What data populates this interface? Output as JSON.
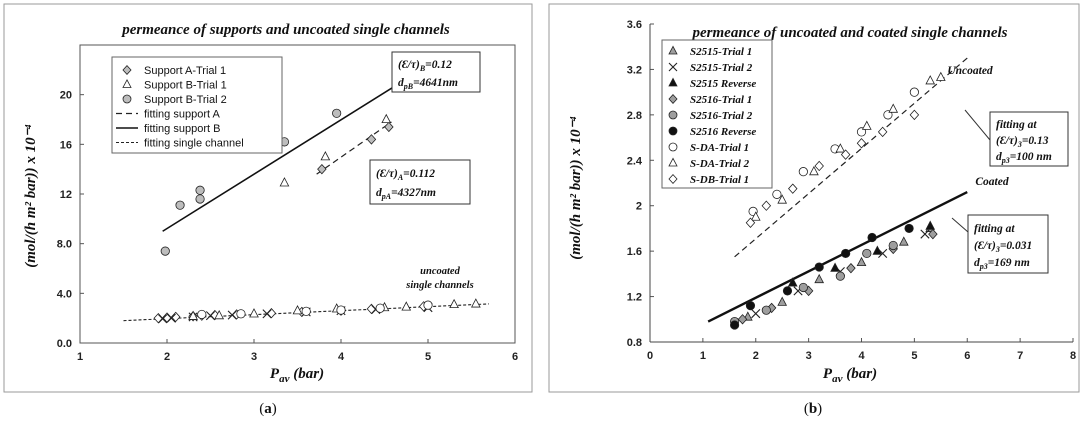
{
  "chart_data": [
    {
      "type": "scatter",
      "title": "permeance of supports and uncoated single channels",
      "xlabel": "P_av (bar)",
      "xlabel_main": "P",
      "xlabel_sub": "av",
      "xlabel_unit": " (bar)",
      "ylabel": "(mol/(h m² bar)) x 10⁻⁴",
      "xlim": [
        1,
        6
      ],
      "ylim": [
        0,
        24
      ],
      "xticks": [
        "1",
        "2",
        "3",
        "4",
        "5",
        "6"
      ],
      "xtick_values": [
        1,
        2,
        3,
        4,
        5,
        6
      ],
      "yticks": [
        "0.0",
        "4.0",
        "8.0",
        "12",
        "16",
        "20"
      ],
      "ytick_values": [
        0,
        4,
        8,
        12,
        16,
        20
      ],
      "grid": false,
      "legend_position": "top-left",
      "caption": "(a)",
      "series": [
        {
          "name": "Support A-Trial 1",
          "marker": "diamond",
          "fill": "#bdbdbd",
          "x": [
            3.78,
            4.35,
            4.55
          ],
          "y": [
            14.0,
            16.4,
            17.4
          ]
        },
        {
          "name": "Support B-Trial 1",
          "marker": "triangle",
          "fill": "#ffffff",
          "x": [
            3.35,
            3.82,
            4.52
          ],
          "y": [
            12.9,
            15.0,
            18.0
          ]
        },
        {
          "name": "Support B-Trial 2",
          "marker": "circle",
          "fill": "#bdbdbd",
          "x": [
            1.98,
            2.15,
            2.38,
            2.38,
            3.35,
            3.95
          ],
          "y": [
            7.4,
            11.1,
            12.3,
            11.6,
            16.2,
            18.5
          ]
        },
        {
          "name": "uncoated single channels (diamond)",
          "marker": "diamond",
          "fill": "#ffffff",
          "x": [
            1.9,
            2.0,
            2.1,
            2.3,
            2.4,
            2.55,
            2.8,
            3.2,
            3.55,
            4.0,
            4.35,
            4.95
          ],
          "y": [
            2.0,
            2.05,
            2.1,
            2.15,
            2.2,
            2.25,
            2.3,
            2.4,
            2.5,
            2.6,
            2.75,
            2.95
          ]
        },
        {
          "name": "uncoated single channels (cross)",
          "marker": "cross",
          "fill": "#ffffff",
          "x": [
            1.95,
            2.05,
            2.3,
            2.5,
            2.75,
            3.15,
            3.6,
            4.0,
            4.4,
            5.0
          ],
          "y": [
            1.95,
            2.0,
            2.1,
            2.2,
            2.25,
            2.35,
            2.5,
            2.6,
            2.7,
            2.85
          ]
        },
        {
          "name": "uncoated single channels (triangle)",
          "marker": "triangle",
          "fill": "#ffffff",
          "x": [
            2.3,
            2.6,
            3.0,
            3.5,
            3.95,
            4.5,
            4.75,
            5.3,
            5.55
          ],
          "y": [
            2.15,
            2.2,
            2.35,
            2.6,
            2.75,
            2.85,
            2.9,
            3.1,
            3.15
          ]
        },
        {
          "name": "uncoated single channels (circle)",
          "marker": "circle",
          "fill": "#ffffff",
          "x": [
            2.4,
            2.85,
            3.6,
            4.0,
            4.45,
            5.0
          ],
          "y": [
            2.3,
            2.35,
            2.55,
            2.65,
            2.8,
            3.05
          ]
        }
      ],
      "fits": [
        {
          "name": "fitting support A",
          "style": "dashed",
          "x": [
            3.72,
            4.58
          ],
          "y": [
            13.6,
            17.8
          ]
        },
        {
          "name": "fitting support B",
          "style": "solid",
          "x": [
            1.95,
            4.6
          ],
          "y": [
            9.0,
            20.6
          ]
        },
        {
          "name": "fitting single channel",
          "style": "dotted",
          "x": [
            1.5,
            5.7
          ],
          "y": [
            1.8,
            3.15
          ]
        }
      ],
      "annotations": {
        "support_b": {
          "line1": "(Ɛ/τ)",
          "line1_sub": "B",
          "line1_val": "=0.12",
          "line2": "d",
          "line2_sub": "pB",
          "line2_val": "=4641nm"
        },
        "support_a": {
          "line1": "(Ɛ/τ)",
          "line1_sub": "A",
          "line1_val": "=0.112",
          "line2": "d",
          "line2_sub": "pA",
          "line2_val": "=4327nm"
        },
        "uncoated_label_1": "uncoated",
        "uncoated_label_2": "single channels"
      }
    },
    {
      "type": "scatter",
      "title": "permeance of uncoated and coated single channels",
      "xlabel": "P_av (bar)",
      "xlabel_main": "P",
      "xlabel_sub": "av",
      "xlabel_unit": " (bar)",
      "ylabel": "(mol/(h m² bar)) x 10⁻⁴",
      "xlim": [
        0,
        8
      ],
      "ylim": [
        0.8,
        3.6
      ],
      "xticks": [
        "0",
        "1",
        "2",
        "3",
        "4",
        "5",
        "6",
        "7",
        "8"
      ],
      "xtick_values": [
        0,
        1,
        2,
        3,
        4,
        5,
        6,
        7,
        8
      ],
      "yticks": [
        "0.8",
        "1.2",
        "1.6",
        "2",
        "2.4",
        "2.8",
        "3.2",
        "3.6"
      ],
      "ytick_values": [
        0.8,
        1.2,
        1.6,
        2.0,
        2.4,
        2.8,
        3.2,
        3.6
      ],
      "grid": false,
      "legend_position": "top-left",
      "caption": "(b)",
      "series": [
        {
          "name": "S2515-Trial 1",
          "marker": "triangle",
          "fill": "#9e9e9e",
          "x": [
            1.85,
            2.5,
            3.2,
            4.0,
            4.8,
            5.3
          ],
          "y": [
            1.02,
            1.15,
            1.35,
            1.5,
            1.68,
            1.8
          ]
        },
        {
          "name": "S2515-Trial 2",
          "marker": "cross",
          "fill": "#ffffff",
          "x": [
            2.0,
            2.8,
            3.6,
            4.4,
            5.2
          ],
          "y": [
            1.05,
            1.25,
            1.42,
            1.58,
            1.75
          ]
        },
        {
          "name": "S2515 Reverse",
          "marker": "triangle",
          "fill": "#111111",
          "x": [
            2.7,
            3.5,
            4.3,
            5.3
          ],
          "y": [
            1.32,
            1.45,
            1.6,
            1.82
          ]
        },
        {
          "name": "S2516-Trial 1",
          "marker": "diamond",
          "fill": "#9e9e9e",
          "x": [
            1.75,
            2.3,
            3.0,
            3.8,
            4.6,
            5.35
          ],
          "y": [
            1.0,
            1.1,
            1.25,
            1.45,
            1.62,
            1.75
          ]
        },
        {
          "name": "S2516-Trial 2",
          "marker": "circle",
          "fill": "#9e9e9e",
          "x": [
            1.6,
            2.2,
            2.9,
            3.6,
            4.1,
            4.6
          ],
          "y": [
            0.98,
            1.08,
            1.28,
            1.38,
            1.58,
            1.65
          ]
        },
        {
          "name": "S2516 Reverse",
          "marker": "circle",
          "fill": "#111111",
          "x": [
            1.6,
            1.9,
            2.6,
            3.2,
            3.7,
            4.2,
            4.9
          ],
          "y": [
            0.95,
            1.12,
            1.25,
            1.46,
            1.58,
            1.72,
            1.8
          ]
        },
        {
          "name": "S-DA-Trial 1",
          "marker": "circle",
          "fill": "#ffffff",
          "x": [
            1.95,
            2.4,
            2.9,
            3.5,
            4.0,
            4.5,
            5.0
          ],
          "y": [
            1.95,
            2.1,
            2.3,
            2.5,
            2.65,
            2.8,
            3.0
          ]
        },
        {
          "name": "S-DA-Trial 2",
          "marker": "triangle",
          "fill": "#ffffff",
          "x": [
            2.0,
            2.5,
            3.1,
            3.6,
            4.1,
            4.6,
            5.3,
            5.5
          ],
          "y": [
            1.9,
            2.05,
            2.3,
            2.5,
            2.7,
            2.85,
            3.1,
            3.13
          ]
        },
        {
          "name": "S-DB-Trial 1",
          "marker": "diamond",
          "fill": "#ffffff",
          "x": [
            1.9,
            2.2,
            2.7,
            3.2,
            3.7,
            4.0,
            4.4,
            5.0
          ],
          "y": [
            1.85,
            2.0,
            2.15,
            2.35,
            2.45,
            2.55,
            2.65,
            2.8
          ]
        }
      ],
      "fits": [
        {
          "name": "Uncoated",
          "style": "dashed",
          "x": [
            1.6,
            6.0
          ],
          "y": [
            1.55,
            3.3
          ]
        },
        {
          "name": "Coated",
          "style": "solid-thick",
          "x": [
            1.1,
            6.0
          ],
          "y": [
            0.98,
            2.12
          ]
        }
      ],
      "annotations": {
        "uncoated_label": "Uncoated",
        "coated_label": "Coated",
        "uncoated_box": {
          "line1": "fitting at",
          "line2": "(Ɛ/τ)",
          "line2_sub": "3",
          "line2_val": "=0.13",
          "line3": "d",
          "line3_sub": "p3",
          "line3_val": "=100 nm"
        },
        "coated_box": {
          "line1": "fitting at",
          "line2": "(Ɛ/τ)",
          "line2_sub": "3",
          "line2_val": "=0.031",
          "line3": "d",
          "line3_sub": "p3",
          "line3_val": "=169 nm"
        }
      }
    }
  ]
}
